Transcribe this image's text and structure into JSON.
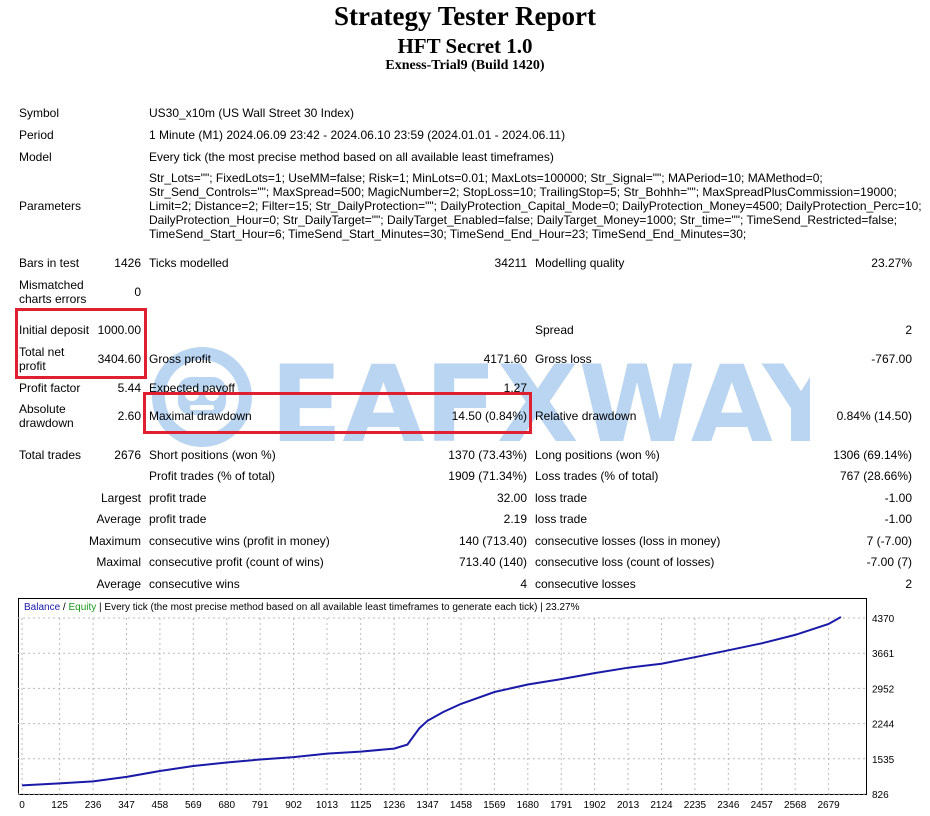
{
  "header": {
    "title": "Strategy Tester Report",
    "ea_name": "HFT Secret 1.0",
    "server": "Exness-Trial9 (Build 1420)"
  },
  "info": {
    "symbol_label": "Symbol",
    "symbol": "US30_x10m (US Wall Street 30 Index)",
    "period_label": "Period",
    "period": "1 Minute (M1) 2024.06.09 23:42 - 2024.06.10 23:59 (2024.01.01 - 2024.06.11)",
    "model_label": "Model",
    "model": "Every tick (the most precise method based on all available least timeframes)",
    "parameters_label": "Parameters",
    "parameters": [
      "Str_Lots=\"\"; FixedLots=1; UseMM=false; Risk=1; MinLots=0.01; MaxLots=100000; Str_Signal=\"\"; MAPeriod=10; MAMethod=0;",
      "Str_Send_Controls=\"\"; MaxSpread=500; MagicNumber=2; StopLoss=10; TrailingStop=5; Str_Bohhh=\"\"; MaxSpreadPlusCommission=19000;",
      "Limit=2; Distance=2; Filter=15; Str_DailyProtection=\"\"; DailyProtection_Capital_Mode=0; DailyProtection_Money=4500; DailyProtection_Perc=10;",
      "DailyProtection_Hour=0; Str_DailyTarget=\"\"; DailyTarget_Enabled=false; DailyTarget_Money=1000; Str_time=\"\"; TimeSend_Restricted=false;",
      "TimeSend_Start_Hour=6; TimeSend_Start_Minutes=30; TimeSend_End_Hour=23; TimeSend_End_Minutes=30;"
    ]
  },
  "stats": {
    "bars_label": "Bars in test",
    "bars": "1426",
    "ticks_label": "Ticks modelled",
    "ticks": "34211",
    "quality_label": "Modelling quality",
    "quality": "23.27%",
    "mismatch_label": "Mismatched charts errors",
    "mismatch": "0",
    "deposit_label": "Initial deposit",
    "deposit": "1000.00",
    "spread_label": "Spread",
    "spread": "2",
    "net_profit_label": "Total net profit",
    "net_profit": "3404.60",
    "gross_profit_label": "Gross profit",
    "gross_profit": "4171.60",
    "gross_loss_label": "Gross loss",
    "gross_loss": "-767.00",
    "profit_factor_label": "Profit factor",
    "profit_factor": "5.44",
    "expected_payoff_label": "Expected payoff",
    "expected_payoff": "1.27",
    "abs_dd_label": "Absolute drawdown",
    "abs_dd": "2.60",
    "max_dd_label": "Maximal drawdown",
    "max_dd": "14.50 (0.84%)",
    "rel_dd_label": "Relative drawdown",
    "rel_dd": "0.84% (14.50)",
    "total_trades_label": "Total trades",
    "total_trades": "2676",
    "short_label": "Short positions (won %)",
    "short": "1370 (73.43%)",
    "long_label": "Long positions (won %)",
    "long": "1306 (69.14%)",
    "profit_trades_label": "Profit trades (% of total)",
    "profit_trades": "1909 (71.34%)",
    "loss_trades_label": "Loss trades (% of total)",
    "loss_trades": "767 (28.66%)",
    "largest": "Largest",
    "average": "Average",
    "maximum": "Maximum",
    "maximal": "Maximal",
    "profit_trade_label": "profit trade",
    "loss_trade_label": "loss trade",
    "largest_profit": "32.00",
    "largest_loss": "-1.00",
    "average_profit": "2.19",
    "average_loss": "-1.00",
    "max_cons_wins_label": "consecutive wins (profit in money)",
    "max_cons_wins": "140 (713.40)",
    "max_cons_losses_label": "consecutive losses (loss in money)",
    "max_cons_losses": "7 (-7.00)",
    "max_cons_profit_label": "consecutive profit (count of wins)",
    "max_cons_profit": "713.40 (140)",
    "max_cons_loss_label": "consecutive loss (count of losses)",
    "max_cons_loss": "-7.00 (7)",
    "avg_cons_wins_label": "consecutive wins",
    "avg_cons_wins": "4",
    "avg_cons_losses_label": "consecutive losses",
    "avg_cons_losses": "2"
  },
  "watermark": {
    "text": "EAFXWAY"
  },
  "colors": {
    "highlight_box": "#e02030",
    "balance": "#1a1aa8",
    "equity": "#1a9a1a",
    "watermark": "#2d7ed6"
  },
  "chart_data": {
    "type": "line",
    "legend_balance": "Balance",
    "legend_equity": "Equity",
    "legend_rest": " | Every tick (the most precise method based on all available least timeframes to generate each tick) | 23.27%",
    "x_ticks": [
      "0",
      "125",
      "236",
      "347",
      "458",
      "569",
      "680",
      "791",
      "902",
      "1013",
      "1125",
      "1236",
      "1347",
      "1458",
      "1569",
      "1680",
      "1791",
      "1902",
      "2013",
      "2124",
      "2235",
      "2346",
      "2457",
      "2568",
      "2679"
    ],
    "y_ticks": [
      "4370",
      "3661",
      "2952",
      "2244",
      "1535",
      "826"
    ],
    "xlim": [
      0,
      2790
    ],
    "ylim": [
      826,
      4370
    ],
    "grid": true,
    "series": [
      {
        "name": "Balance",
        "x": [
          0,
          125,
          236,
          347,
          458,
          569,
          680,
          791,
          902,
          1013,
          1125,
          1236,
          1280,
          1320,
          1347,
          1400,
          1458,
          1569,
          1680,
          1791,
          1902,
          2013,
          2124,
          2235,
          2346,
          2457,
          2568,
          2679,
          2720
        ],
        "y": [
          1000,
          1040,
          1080,
          1170,
          1290,
          1390,
          1460,
          1520,
          1570,
          1640,
          1680,
          1740,
          1820,
          2150,
          2300,
          2480,
          2640,
          2880,
          3030,
          3140,
          3260,
          3370,
          3450,
          3580,
          3720,
          3860,
          4030,
          4250,
          4390
        ]
      }
    ]
  }
}
